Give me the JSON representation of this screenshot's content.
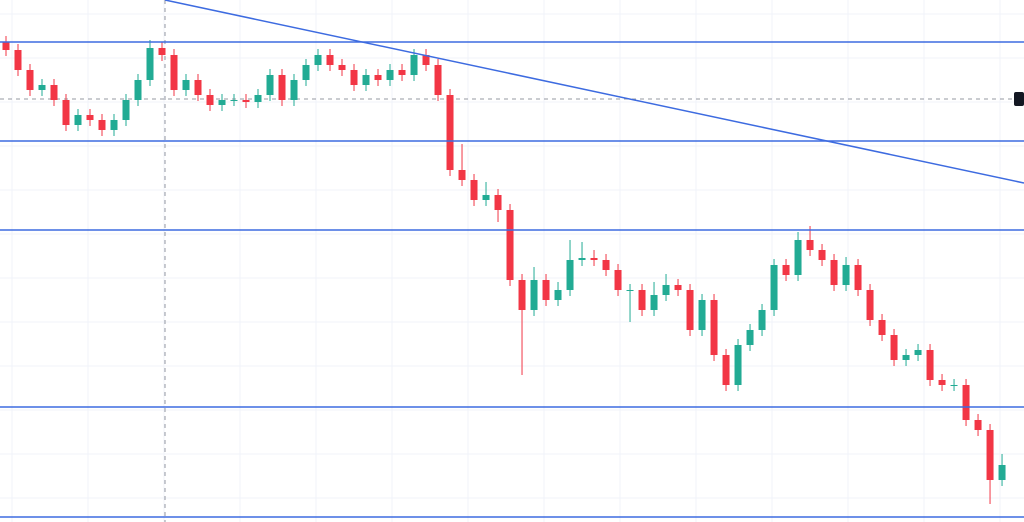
{
  "chart_data": {
    "type": "candlestick",
    "xlim": [
      -0.5,
      84.83
    ],
    "ylim": [
      0,
      522
    ],
    "open": [
      480,
      472,
      452,
      432,
      437,
      422,
      397,
      407,
      402,
      392,
      402,
      422,
      442,
      474,
      467,
      432,
      442,
      427,
      417,
      422,
      422,
      420,
      427,
      447,
      422,
      442,
      457,
      467,
      457,
      452,
      437,
      447,
      442,
      452,
      447,
      467,
      457,
      427,
      352,
      342,
      322,
      327,
      312,
      242,
      212,
      242,
      222,
      232,
      262,
      264,
      262,
      252,
      232,
      232,
      212,
      227,
      237,
      232,
      192,
      222,
      167,
      137,
      177,
      192,
      212,
      257,
      247,
      282,
      272,
      262,
      237,
      257,
      232,
      202,
      187,
      162,
      167,
      172,
      142,
      137,
      137,
      102,
      92,
      42
    ],
    "high": [
      486,
      478,
      458,
      443,
      443,
      428,
      413,
      413,
      408,
      408,
      428,
      448,
      482,
      480,
      473,
      448,
      448,
      433,
      428,
      428,
      428,
      433,
      453,
      453,
      448,
      463,
      473,
      473,
      463,
      458,
      453,
      453,
      458,
      458,
      473,
      473,
      463,
      433,
      378,
      348,
      340,
      333,
      318,
      248,
      255,
      248,
      240,
      282,
      280,
      272,
      268,
      258,
      238,
      238,
      240,
      248,
      243,
      238,
      228,
      228,
      173,
      183,
      198,
      218,
      263,
      263,
      290,
      296,
      278,
      268,
      265,
      263,
      238,
      208,
      193,
      173,
      178,
      178,
      148,
      143,
      143,
      108,
      98,
      68
    ],
    "low": [
      466,
      446,
      426,
      426,
      416,
      391,
      391,
      396,
      386,
      386,
      396,
      416,
      436,
      461,
      426,
      426,
      421,
      411,
      411,
      416,
      414,
      414,
      421,
      416,
      416,
      436,
      451,
      451,
      446,
      431,
      431,
      436,
      436,
      441,
      441,
      451,
      421,
      346,
      336,
      316,
      316,
      300,
      236,
      147,
      206,
      216,
      216,
      226,
      256,
      256,
      246,
      226,
      200,
      206,
      206,
      221,
      226,
      186,
      186,
      161,
      131,
      131,
      171,
      186,
      206,
      241,
      241,
      266,
      256,
      231,
      231,
      226,
      196,
      181,
      156,
      156,
      161,
      136,
      131,
      131,
      96,
      86,
      18,
      36
    ],
    "close": [
      472,
      452,
      432,
      437,
      422,
      397,
      407,
      402,
      392,
      402,
      422,
      442,
      474,
      467,
      432,
      442,
      427,
      417,
      422,
      422,
      420,
      427,
      447,
      422,
      442,
      457,
      467,
      457,
      452,
      437,
      447,
      442,
      452,
      447,
      467,
      457,
      427,
      352,
      342,
      322,
      327,
      312,
      242,
      212,
      242,
      222,
      232,
      262,
      264,
      262,
      252,
      232,
      232,
      212,
      227,
      237,
      232,
      192,
      222,
      167,
      137,
      177,
      192,
      212,
      257,
      247,
      282,
      272,
      262,
      237,
      257,
      232,
      202,
      187,
      162,
      167,
      172,
      142,
      137,
      137,
      102,
      92,
      42,
      57
    ],
    "up_color": "#22ab94",
    "down_color": "#f23645",
    "levels": [
      480,
      381,
      292,
      115,
      5
    ],
    "level_color": "#3d6be0",
    "trendline": {
      "x": [
        13.25,
        84.83
      ],
      "y": [
        522,
        339
      ]
    },
    "crosshair": {
      "x": 13.25,
      "y": 423
    },
    "grid": true
  }
}
